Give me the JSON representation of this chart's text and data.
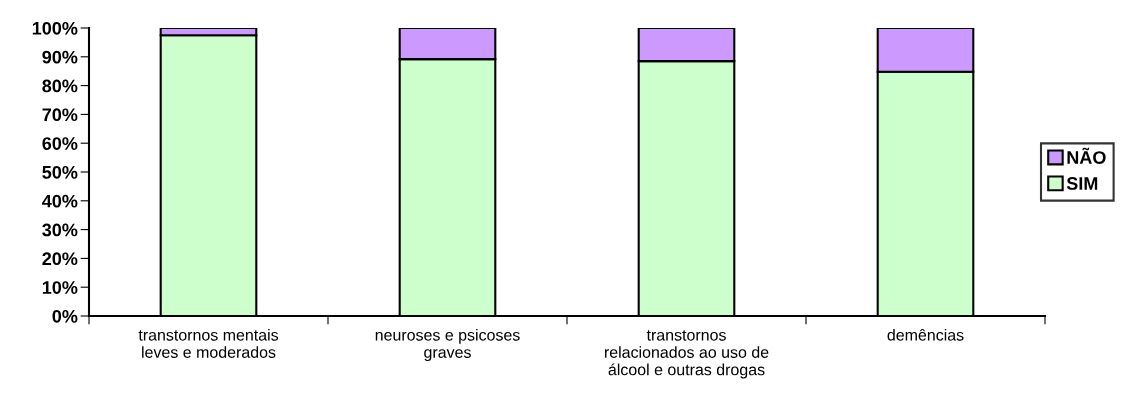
{
  "chart_data": {
    "type": "bar",
    "stacked": true,
    "categories": [
      "transtornos mentais\nleves e moderados",
      "neuroses e psicoses\ngraves",
      "transtornos\nrelacionados ao uso de\nálcool e outras drogas",
      "demências"
    ],
    "series": [
      {
        "name": "SIM",
        "color": "#ccffcc",
        "values": [
          97.5,
          89.2,
          88.5,
          84.8
        ]
      },
      {
        "name": "NÃO",
        "color": "#cc99ff",
        "values": [
          2.5,
          10.8,
          11.5,
          15.2
        ]
      }
    ],
    "ylim": [
      0,
      100
    ],
    "yticks": [
      {
        "value": 0,
        "label": "0%"
      },
      {
        "value": 10,
        "label": "10%"
      },
      {
        "value": 20,
        "label": "20%"
      },
      {
        "value": 30,
        "label": "30%"
      },
      {
        "value": 40,
        "label": "40%"
      },
      {
        "value": 50,
        "label": "50%"
      },
      {
        "value": 60,
        "label": "60%"
      },
      {
        "value": 70,
        "label": "70%"
      },
      {
        "value": 80,
        "label": "80%"
      },
      {
        "value": 90,
        "label": "90%"
      },
      {
        "value": 100,
        "label": "100%"
      }
    ],
    "grid": false,
    "legend": "right"
  }
}
